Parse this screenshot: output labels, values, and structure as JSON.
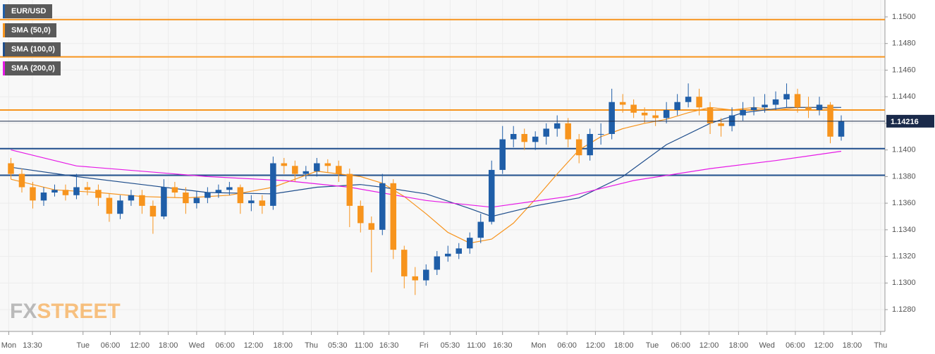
{
  "chart_data": {
    "type": "candlestick",
    "series": [
      {
        "name": "EUR/USD",
        "color": "#1f5ea8",
        "down_color": "#f7941d",
        "open": [
          1.139,
          1.1382,
          1.1372,
          1.1362,
          1.1368,
          1.137,
          1.1366,
          1.1372,
          1.137,
          1.1364,
          1.1352,
          1.1362,
          1.1366,
          1.1358,
          1.135,
          1.1372,
          1.1368,
          1.136,
          1.1364,
          1.1368,
          1.137,
          1.1372,
          1.136,
          1.1362,
          1.1358,
          1.139,
          1.1388,
          1.1382,
          1.1384,
          1.139,
          1.1388,
          1.1382,
          1.1358,
          1.1345,
          1.134,
          1.1375,
          1.1325,
          1.1305,
          1.1302,
          1.131,
          1.132,
          1.1322,
          1.1326,
          1.1334,
          1.1346,
          1.1385,
          1.1408,
          1.1412,
          1.1406,
          1.141,
          1.1416,
          1.142,
          1.1408,
          1.1396,
          1.1412,
          1.1412,
          1.1436,
          1.1434,
          1.1428,
          1.1426,
          1.1424,
          1.143,
          1.1436,
          1.144,
          1.1432,
          1.142,
          1.1418,
          1.1426,
          1.143,
          1.1432,
          1.1434,
          1.1438,
          1.1442,
          1.1432,
          1.143,
          1.1434,
          1.141
        ],
        "high": [
          1.1394,
          1.1386,
          1.1376,
          1.1372,
          1.1374,
          1.1374,
          1.1382,
          1.1376,
          1.1374,
          1.1367,
          1.1366,
          1.137,
          1.137,
          1.1362,
          1.1378,
          1.1376,
          1.1372,
          1.1369,
          1.1372,
          1.1374,
          1.1376,
          1.1374,
          1.1366,
          1.1366,
          1.1395,
          1.1394,
          1.1392,
          1.1388,
          1.1394,
          1.1393,
          1.1392,
          1.1386,
          1.1362,
          1.135,
          1.1382,
          1.1378,
          1.1328,
          1.1312,
          1.1314,
          1.1324,
          1.1328,
          1.133,
          1.1338,
          1.1352,
          1.1392,
          1.1418,
          1.1418,
          1.1416,
          1.1414,
          1.142,
          1.1426,
          1.1424,
          1.1412,
          1.1416,
          1.142,
          1.1446,
          1.1442,
          1.1438,
          1.1432,
          1.143,
          1.1436,
          1.1442,
          1.145,
          1.1446,
          1.1436,
          1.1424,
          1.1432,
          1.1436,
          1.144,
          1.1442,
          1.1444,
          1.145,
          1.1446,
          1.144,
          1.144,
          1.1436,
          1.1426
        ],
        "low": [
          1.1378,
          1.1368,
          1.1356,
          1.1358,
          1.1365,
          1.1362,
          1.1363,
          1.1366,
          1.1358,
          1.1346,
          1.1348,
          1.1358,
          1.1352,
          1.1337,
          1.1348,
          1.1364,
          1.1352,
          1.1356,
          1.136,
          1.1364,
          1.1366,
          1.1352,
          1.1354,
          1.1352,
          1.1355,
          1.1382,
          1.1376,
          1.1378,
          1.138,
          1.1383,
          1.1376,
          1.1342,
          1.1338,
          1.1308,
          1.1336,
          1.1318,
          1.1296,
          1.1291,
          1.1298,
          1.1306,
          1.1316,
          1.1318,
          1.1322,
          1.133,
          1.1344,
          1.1382,
          1.1402,
          1.14,
          1.14,
          1.1404,
          1.141,
          1.1402,
          1.139,
          1.1392,
          1.1404,
          1.1408,
          1.1428,
          1.1424,
          1.142,
          1.1418,
          1.142,
          1.1426,
          1.1432,
          1.1426,
          1.1412,
          1.141,
          1.1414,
          1.1422,
          1.1426,
          1.1428,
          1.143,
          1.1432,
          1.1428,
          1.1424,
          1.1426,
          1.1405,
          1.1407
        ],
        "close": [
          1.1382,
          1.1372,
          1.1362,
          1.1368,
          1.137,
          1.1366,
          1.1372,
          1.137,
          1.1364,
          1.1352,
          1.1362,
          1.1366,
          1.1358,
          1.135,
          1.1372,
          1.1368,
          1.136,
          1.1364,
          1.1368,
          1.137,
          1.1372,
          1.136,
          1.1362,
          1.1358,
          1.139,
          1.1388,
          1.1382,
          1.1384,
          1.139,
          1.1388,
          1.1382,
          1.1358,
          1.1345,
          1.134,
          1.1375,
          1.1325,
          1.1305,
          1.1302,
          1.131,
          1.132,
          1.1322,
          1.1326,
          1.1334,
          1.1346,
          1.1385,
          1.1408,
          1.1412,
          1.1406,
          1.141,
          1.1416,
          1.142,
          1.1408,
          1.1396,
          1.1412,
          1.1412,
          1.1436,
          1.1434,
          1.1428,
          1.1426,
          1.1424,
          1.143,
          1.1436,
          1.144,
          1.1432,
          1.142,
          1.1418,
          1.1426,
          1.143,
          1.1432,
          1.1434,
          1.1438,
          1.1442,
          1.1432,
          1.143,
          1.1434,
          1.141,
          1.14216
        ]
      }
    ],
    "overlays": [
      {
        "name": "SMA (50,0)",
        "color": "#f7941d",
        "x": [
          0,
          4,
          8,
          12,
          16,
          20,
          24,
          28,
          32,
          34,
          36,
          38,
          40,
          42,
          44,
          46,
          48,
          50,
          52,
          54,
          56,
          58,
          60,
          62,
          64,
          66,
          68,
          70,
          72,
          74,
          76
        ],
        "values": [
          1.1378,
          1.137,
          1.1368,
          1.1365,
          1.1364,
          1.1366,
          1.1372,
          1.1384,
          1.138,
          1.1375,
          1.1365,
          1.1352,
          1.1338,
          1.133,
          1.1333,
          1.1345,
          1.1363,
          1.1382,
          1.14,
          1.141,
          1.1416,
          1.142,
          1.1423,
          1.1428,
          1.1432,
          1.143,
          1.1432,
          1.143,
          1.1432,
          1.1432,
          1.143
        ]
      },
      {
        "name": "SMA (100,0)",
        "color": "#1f4e8c",
        "x": [
          0,
          6,
          12,
          18,
          24,
          28,
          32,
          34,
          38,
          42,
          44,
          48,
          52,
          56,
          60,
          64,
          67,
          71,
          76
        ],
        "values": [
          1.1387,
          1.138,
          1.1374,
          1.1368,
          1.1367,
          1.1372,
          1.1374,
          1.1372,
          1.1367,
          1.1356,
          1.135,
          1.1358,
          1.1364,
          1.138,
          1.1404,
          1.142,
          1.1428,
          1.1432,
          1.1432
        ]
      },
      {
        "name": "SMA (200,0)",
        "color": "#e619e6",
        "x": [
          0,
          6,
          12,
          18,
          25,
          31,
          38,
          44,
          51,
          57,
          64,
          70,
          76
        ],
        "values": [
          1.14,
          1.1388,
          1.1384,
          1.138,
          1.1377,
          1.1372,
          1.1362,
          1.1357,
          1.1365,
          1.1377,
          1.1386,
          1.1392,
          1.1399
        ]
      }
    ],
    "levels": [
      {
        "value": 1.1498,
        "color": "#f7941d"
      },
      {
        "value": 1.147,
        "color": "#f7941d"
      },
      {
        "value": 1.143,
        "color": "#f7941d"
      },
      {
        "value": 1.1401,
        "color": "#1f4e8c"
      },
      {
        "value": 1.1381,
        "color": "#1f4e8c"
      }
    ],
    "last_price": 1.14216,
    "xlim": [
      -1,
      80
    ],
    "ylim": [
      1.12636,
      1.15127
    ],
    "yticks": [
      {
        "value": 1.128,
        "label": "1.1280"
      },
      {
        "value": 1.13,
        "label": "1.1300"
      },
      {
        "value": 1.132,
        "label": "1.1320"
      },
      {
        "value": 1.134,
        "label": "1.1340"
      },
      {
        "value": 1.136,
        "label": "1.1360"
      },
      {
        "value": 1.138,
        "label": "1.1380"
      },
      {
        "value": 1.14,
        "label": "1.1400"
      },
      {
        "value": 1.142,
        "label": "1.1420"
      },
      {
        "value": 1.144,
        "label": "1.1440"
      },
      {
        "value": 1.146,
        "label": "1.1460"
      },
      {
        "value": 1.148,
        "label": "1.1480"
      },
      {
        "value": 1.15,
        "label": "1.1500"
      }
    ],
    "xticks": [
      {
        "value": -0.2,
        "label": "Mon"
      },
      {
        "value": 1.97,
        "label": "13:30"
      },
      {
        "value": 6.6,
        "label": "Tue"
      },
      {
        "value": 9.1,
        "label": "06:00"
      },
      {
        "value": 11.8,
        "label": "12:00"
      },
      {
        "value": 14.4,
        "label": "18:00"
      },
      {
        "value": 17.0,
        "label": "Wed"
      },
      {
        "value": 19.6,
        "label": "06:00"
      },
      {
        "value": 22.2,
        "label": "12:00"
      },
      {
        "value": 24.9,
        "label": "18:00"
      },
      {
        "value": 27.5,
        "label": "Thu"
      },
      {
        "value": 29.9,
        "label": "05:30"
      },
      {
        "value": 32.3,
        "label": "11:00"
      },
      {
        "value": 34.6,
        "label": "16:30"
      },
      {
        "value": 37.8,
        "label": "Fri"
      },
      {
        "value": 40.2,
        "label": "05:30"
      },
      {
        "value": 42.6,
        "label": "11:00"
      },
      {
        "value": 45.0,
        "label": "16:30"
      },
      {
        "value": 48.3,
        "label": "Mon"
      },
      {
        "value": 50.9,
        "label": "06:00"
      },
      {
        "value": 53.5,
        "label": "12:00"
      },
      {
        "value": 56.1,
        "label": "18:00"
      },
      {
        "value": 58.7,
        "label": "Tue"
      },
      {
        "value": 61.3,
        "label": "06:00"
      },
      {
        "value": 63.9,
        "label": "12:00"
      },
      {
        "value": 66.6,
        "label": "18:00"
      },
      {
        "value": 69.2,
        "label": "Wed"
      },
      {
        "value": 71.8,
        "label": "06:00"
      },
      {
        "value": 74.4,
        "label": "12:00"
      },
      {
        "value": 77.0,
        "label": "18:00"
      },
      {
        "value": 79.6,
        "label": "Thu"
      }
    ],
    "watermark": {
      "left": "FX",
      "right": "STREET"
    }
  }
}
